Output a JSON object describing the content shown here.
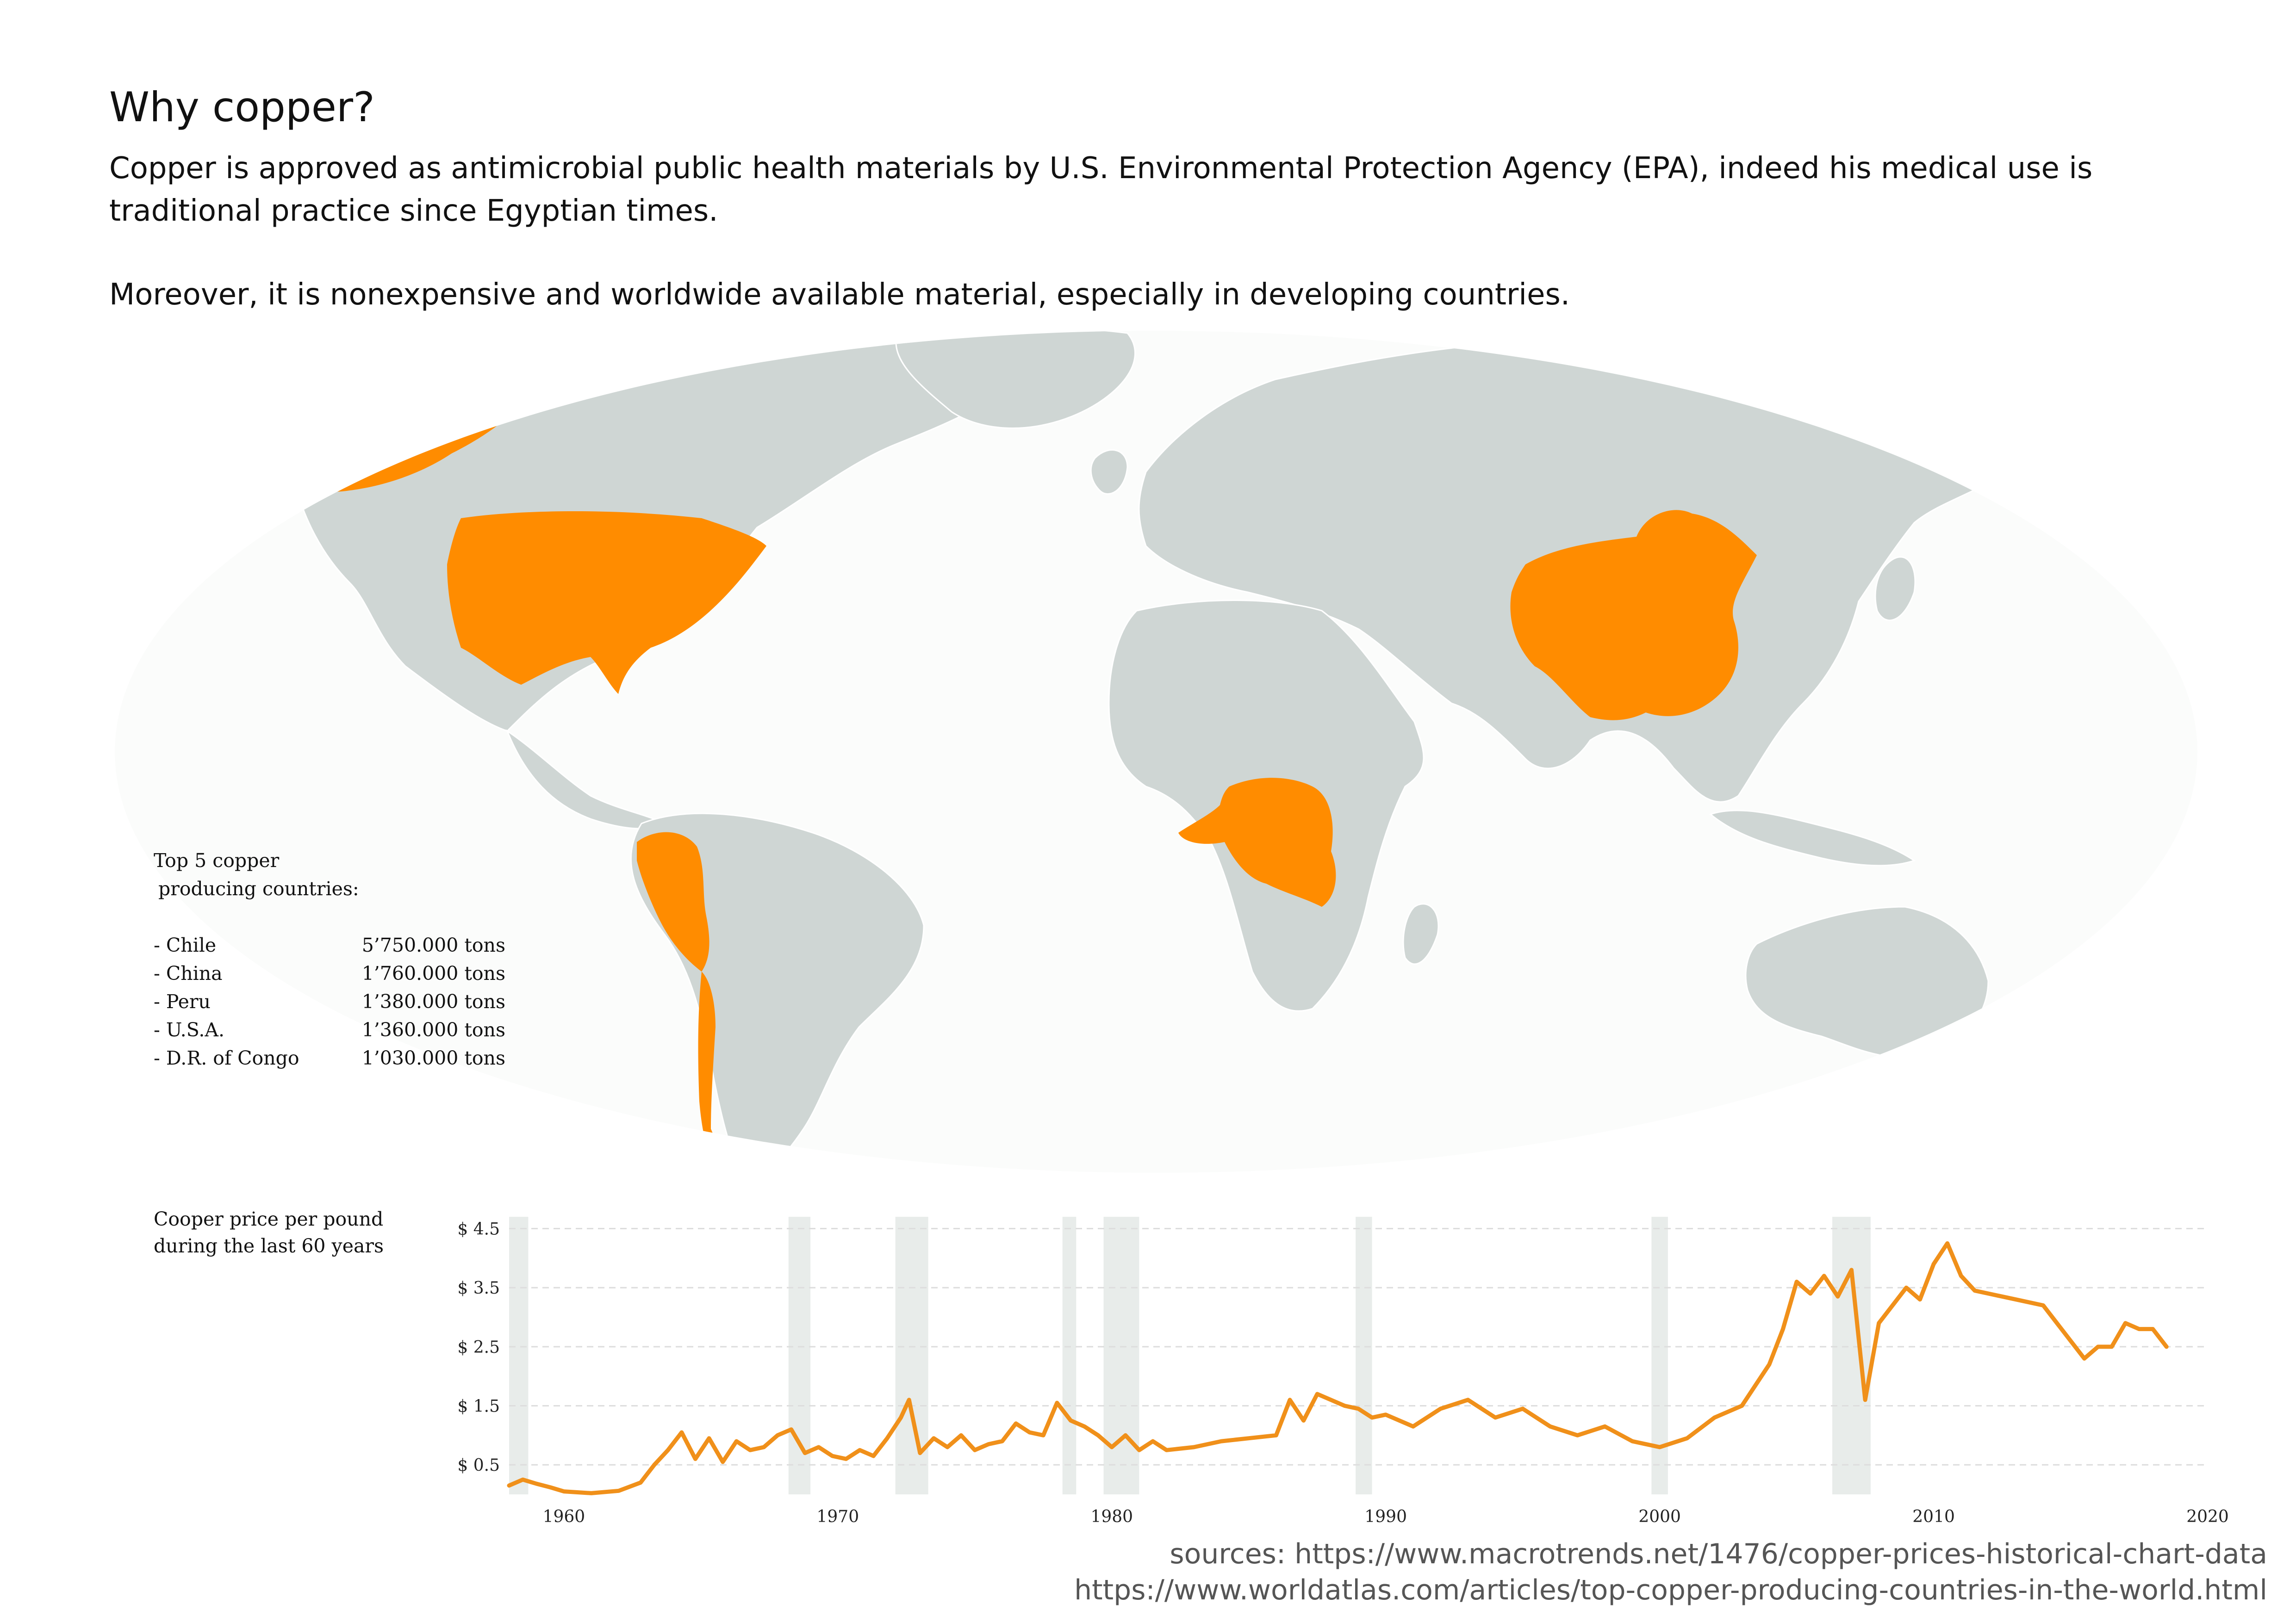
{
  "header": {
    "title": "Why copper?",
    "paragraph1": "Copper is approved as antimicrobial public health materials by U.S. Environmental Protection Agency (EPA), indeed his medical use is traditional practice since Egyptian times.",
    "paragraph2": "Moreover, it is nonexpensive and worldwide available material, especially in developing countries."
  },
  "map": {
    "land_color": "#cfd6d4",
    "highlight_color": "#ff8c00",
    "highlighted_countries": [
      "Chile",
      "China",
      "Peru",
      "U.S.A.",
      "D.R. of Congo"
    ],
    "legend": {
      "heading_line1": "Top 5 copper",
      "heading_line2": "producing countries:",
      "rows": [
        {
          "country": "- Chile",
          "value": "5’750.000 tons"
        },
        {
          "country": "- China",
          "value": "1’760.000 tons"
        },
        {
          "country": "- Peru",
          "value": "1’380.000 tons"
        },
        {
          "country": "- U.S.A.",
          "value": "1’360.000 tons"
        },
        {
          "country": "- D.R. of Congo",
          "value": "1’030.000 tons"
        }
      ]
    }
  },
  "chart_data": {
    "type": "line",
    "title_line1": "Cooper price per pound",
    "title_line2": "during the last 60 years",
    "line_color": "#f0901a",
    "band_color": "#e8ecea",
    "xlim": [
      1958,
      2020
    ],
    "ylim": [
      0,
      4.7
    ],
    "y_tick_values": [
      0.5,
      1.5,
      2.5,
      3.5,
      4.5
    ],
    "y_tick_labels": [
      "$ 0.5",
      "$ 1.5",
      "$ 2.5",
      "$ 3.5",
      "$ 4.5"
    ],
    "x_ticks": [
      "1960",
      "1970",
      "1980",
      "1990",
      "2000",
      "2010",
      "2020"
    ],
    "recession_bands": [
      [
        1958,
        1958.7
      ],
      [
        1968.2,
        1969
      ],
      [
        1972.1,
        1973.3
      ],
      [
        1978.2,
        1978.7
      ],
      [
        1979.7,
        1981
      ],
      [
        1988.9,
        1989.5
      ],
      [
        1999.7,
        2000.3
      ],
      [
        2006.3,
        2007.7
      ]
    ],
    "x": [
      1958,
      1958.5,
      1959,
      1959.5,
      1960,
      1961,
      1962,
      1962.8,
      1963.3,
      1963.8,
      1964.3,
      1964.8,
      1965.3,
      1965.8,
      1966.3,
      1966.8,
      1967.3,
      1967.8,
      1968.3,
      1968.8,
      1969.3,
      1969.8,
      1970.3,
      1970.8,
      1971.3,
      1971.8,
      1972.3,
      1972.6,
      1973,
      1973.5,
      1974,
      1974.5,
      1975,
      1975.5,
      1976,
      1976.5,
      1977,
      1977.5,
      1978,
      1978.5,
      1979,
      1979.5,
      1980,
      1980.5,
      1981,
      1981.5,
      1982,
      1983,
      1984,
      1985,
      1986,
      1986.5,
      1987,
      1987.5,
      1988,
      1988.5,
      1989,
      1989.5,
      1990,
      1991,
      1992,
      1993,
      1994,
      1995,
      1996,
      1997,
      1998,
      1999,
      2000,
      2001,
      2002,
      2003,
      2004,
      2004.5,
      2005,
      2005.5,
      2006,
      2006.5,
      2007,
      2007.5,
      2008,
      2008.5,
      2009,
      2009.5,
      2010,
      2010.5,
      2011,
      2011.5,
      2012,
      2013,
      2014,
      2015,
      2015.5,
      2016,
      2016.5,
      2017,
      2017.5,
      2018,
      2018.5
    ],
    "y": [
      0.15,
      0.25,
      0.18,
      0.12,
      0.05,
      0.02,
      0.06,
      0.2,
      0.5,
      0.75,
      1.05,
      0.6,
      0.95,
      0.55,
      0.9,
      0.75,
      0.8,
      1.0,
      1.1,
      0.7,
      0.8,
      0.65,
      0.6,
      0.75,
      0.65,
      0.95,
      1.3,
      1.6,
      0.7,
      0.95,
      0.8,
      1.0,
      0.75,
      0.85,
      0.9,
      1.2,
      1.05,
      1.0,
      1.55,
      1.25,
      1.15,
      1.0,
      0.8,
      1.0,
      0.75,
      0.9,
      0.75,
      0.8,
      0.9,
      0.95,
      1.0,
      1.6,
      1.25,
      1.7,
      1.6,
      1.5,
      1.45,
      1.3,
      1.35,
      1.15,
      1.45,
      1.6,
      1.3,
      1.45,
      1.15,
      1.0,
      1.15,
      0.9,
      0.8,
      0.95,
      1.3,
      1.5,
      2.2,
      2.8,
      3.6,
      3.4,
      3.7,
      3.35,
      3.8,
      1.6,
      2.9,
      3.2,
      3.5,
      3.3,
      3.9,
      4.25,
      3.7,
      3.45,
      3.4,
      3.3,
      3.2,
      2.6,
      2.3,
      2.5,
      2.5,
      2.9,
      2.8,
      2.8,
      2.5
    ]
  },
  "footer": {
    "source_line1": "sources: https://www.macrotrends.net/1476/copper-prices-historical-chart-data",
    "source_line2": "https://www.worldatlas.com/articles/top-copper-producing-countries-in-the-world.html"
  }
}
